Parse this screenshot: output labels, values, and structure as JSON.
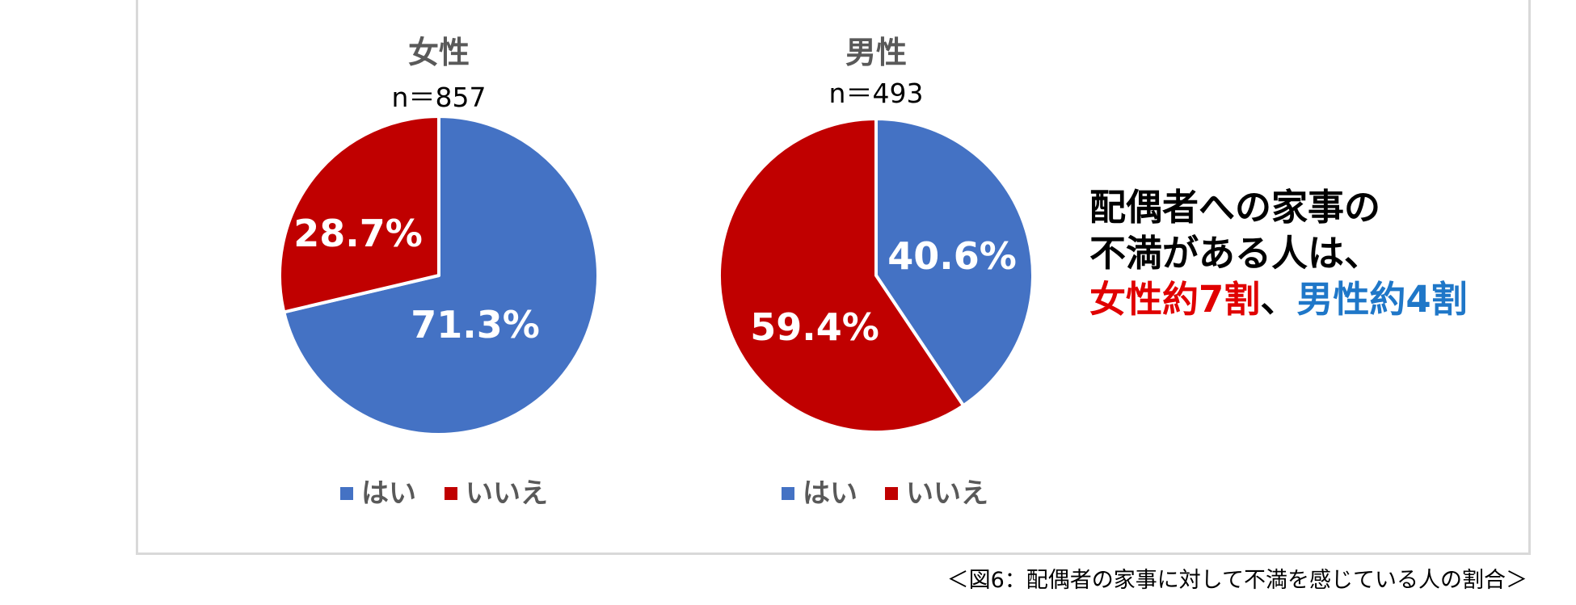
{
  "colors": {
    "hai": "#4472C4",
    "iie": "#C00000",
    "headline_red": "#E00000",
    "headline_blue": "#1F77C8"
  },
  "chart_data": [
    {
      "type": "pie",
      "title": "女性",
      "n_label": "n＝857",
      "slices": [
        {
          "name": "はい",
          "value": 71.3,
          "label": "71.3%",
          "color": "#4472C4"
        },
        {
          "name": "いいえ",
          "value": 28.7,
          "label": "28.7%",
          "color": "#C00000"
        }
      ],
      "legend": [
        "はい",
        "いいえ"
      ],
      "legend_position": "bottom"
    },
    {
      "type": "pie",
      "title": "男性",
      "n_label": "n＝493",
      "slices": [
        {
          "name": "はい",
          "value": 40.6,
          "label": "40.6%",
          "color": "#4472C4"
        },
        {
          "name": "いいえ",
          "value": 59.4,
          "label": "59.4%",
          "color": "#C00000"
        }
      ],
      "legend": [
        "はい",
        "いいえ"
      ],
      "legend_position": "bottom"
    }
  ],
  "headline": {
    "line1": "配偶者への家事の",
    "line2": "不満がある人は、",
    "line3_red": "女性約7割",
    "line3_sep": "、",
    "line3_blue": "男性約4割"
  },
  "caption": "＜図6：配偶者の家事に対して不満を感じている人の割合＞"
}
